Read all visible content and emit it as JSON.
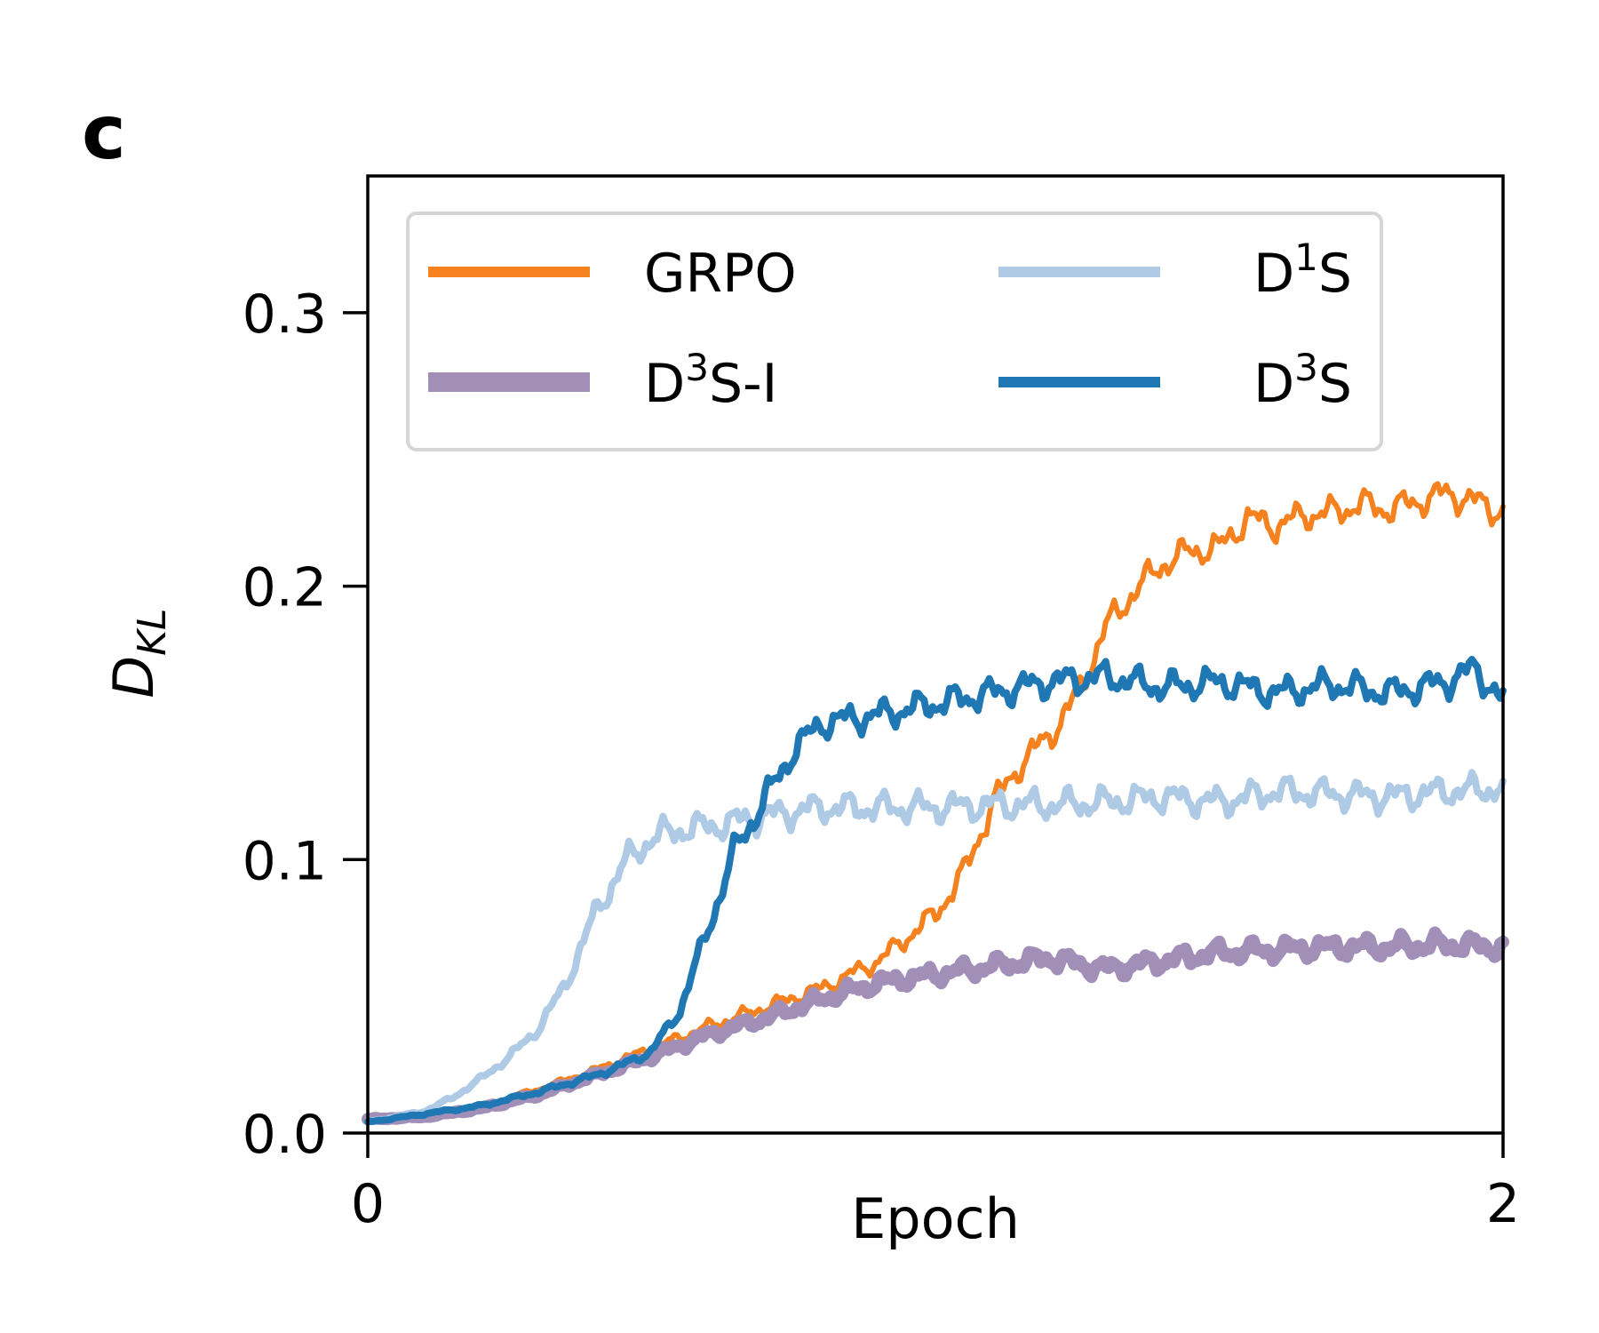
{
  "panel_label": "c",
  "chart_data": {
    "type": "line",
    "title": "",
    "xlabel": "Epoch",
    "ylabel": {
      "main": "D",
      "subscript": "KL"
    },
    "xlim": [
      0,
      2
    ],
    "ylim": [
      0,
      0.35
    ],
    "xticks": [
      0,
      2
    ],
    "xtick_labels": [
      "0",
      "2"
    ],
    "yticks": [
      0.0,
      0.1,
      0.2,
      0.3
    ],
    "ytick_labels": [
      "0.0",
      "0.1",
      "0.2",
      "0.3"
    ],
    "legend": {
      "placement": "top-left",
      "columns": 2
    },
    "series": [
      {
        "name": "GRPO",
        "legend_parts": [
          "GRPO",
          "",
          ""
        ],
        "color": "#f5821f",
        "x": [
          0,
          0.1,
          0.2,
          0.3,
          0.4,
          0.5,
          0.6,
          0.7,
          0.8,
          0.9,
          1.0,
          1.05,
          1.1,
          1.15,
          1.2,
          1.25,
          1.3,
          1.35,
          1.4,
          1.45,
          1.5,
          1.55,
          1.6,
          1.65,
          1.7,
          1.75,
          1.8,
          1.85,
          1.9,
          1.95,
          2.0
        ],
        "y": [
          0.004,
          0.006,
          0.01,
          0.016,
          0.023,
          0.031,
          0.039,
          0.046,
          0.053,
          0.063,
          0.08,
          0.095,
          0.12,
          0.135,
          0.145,
          0.16,
          0.185,
          0.198,
          0.208,
          0.213,
          0.214,
          0.225,
          0.222,
          0.226,
          0.227,
          0.23,
          0.228,
          0.231,
          0.234,
          0.231,
          0.227
        ]
      },
      {
        "name": "D3S-I",
        "legend_parts": [
          "D",
          "3",
          "S-I"
        ],
        "color": "#a18fb8",
        "x": [
          0,
          0.1,
          0.2,
          0.3,
          0.4,
          0.5,
          0.6,
          0.7,
          0.8,
          0.9,
          1.0,
          1.1,
          1.2,
          1.3,
          1.4,
          1.5,
          1.6,
          1.7,
          1.8,
          1.9,
          2.0
        ],
        "y": [
          0.005,
          0.006,
          0.009,
          0.014,
          0.021,
          0.028,
          0.036,
          0.042,
          0.049,
          0.055,
          0.058,
          0.061,
          0.064,
          0.06,
          0.063,
          0.066,
          0.067,
          0.068,
          0.068,
          0.069,
          0.068
        ]
      },
      {
        "name": "D1S",
        "legend_parts": [
          "D",
          "1",
          "S"
        ],
        "color": "#aecae5",
        "x": [
          0,
          0.1,
          0.15,
          0.2,
          0.25,
          0.3,
          0.35,
          0.4,
          0.45,
          0.5,
          0.55,
          0.6,
          0.65,
          0.7,
          0.8,
          0.9,
          1.0,
          1.1,
          1.2,
          1.3,
          1.4,
          1.5,
          1.6,
          1.7,
          1.8,
          1.9,
          2.0
        ],
        "y": [
          0.004,
          0.008,
          0.013,
          0.02,
          0.028,
          0.038,
          0.055,
          0.08,
          0.098,
          0.108,
          0.111,
          0.112,
          0.114,
          0.116,
          0.119,
          0.119,
          0.119,
          0.12,
          0.12,
          0.121,
          0.123,
          0.121,
          0.125,
          0.124,
          0.123,
          0.125,
          0.126
        ]
      },
      {
        "name": "D3S",
        "legend_parts": [
          "D",
          "3",
          "S"
        ],
        "color": "#1f77b4",
        "x": [
          0,
          0.1,
          0.2,
          0.3,
          0.4,
          0.45,
          0.5,
          0.55,
          0.6,
          0.65,
          0.7,
          0.75,
          0.8,
          0.9,
          1.0,
          1.1,
          1.2,
          1.3,
          1.4,
          1.5,
          1.6,
          1.7,
          1.8,
          1.9,
          1.95,
          2.0
        ],
        "y": [
          0.004,
          0.007,
          0.01,
          0.015,
          0.021,
          0.025,
          0.03,
          0.045,
          0.075,
          0.105,
          0.122,
          0.14,
          0.15,
          0.153,
          0.157,
          0.161,
          0.165,
          0.167,
          0.163,
          0.165,
          0.161,
          0.164,
          0.161,
          0.165,
          0.17,
          0.158
        ]
      }
    ]
  }
}
